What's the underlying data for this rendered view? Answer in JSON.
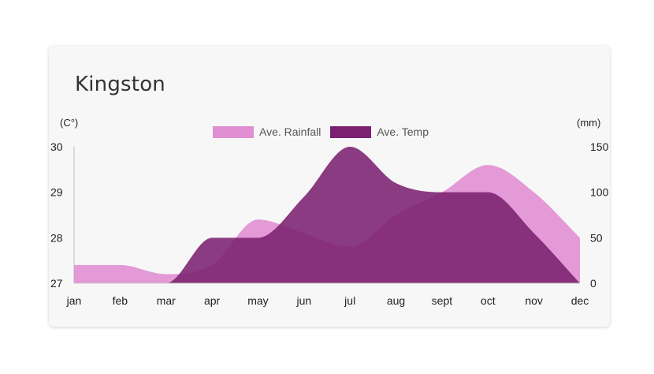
{
  "title": "Kingston",
  "chart_data": {
    "type": "area",
    "title": "Kingston",
    "categories": [
      "jan",
      "feb",
      "mar",
      "apr",
      "may",
      "jun",
      "jul",
      "aug",
      "sept",
      "oct",
      "nov",
      "dec"
    ],
    "left_axis": {
      "unit": "(C°)",
      "ylim": [
        27,
        30
      ],
      "ticks": [
        "30",
        "29",
        "28",
        "27"
      ]
    },
    "right_axis": {
      "unit": "(mm)",
      "ylim": [
        0,
        150
      ],
      "ticks": [
        "150",
        "100",
        "50",
        "0"
      ]
    },
    "series": [
      {
        "name": "Ave. Rainfall",
        "axis": "right",
        "color": "#e08fd2",
        "opacity": 0.9,
        "values": [
          20,
          20,
          10,
          20,
          70,
          55,
          40,
          75,
          100,
          130,
          100,
          50
        ]
      },
      {
        "name": "Ave. Temp",
        "axis": "left",
        "color": "#7b2170",
        "opacity": 0.88,
        "values": [
          27.0,
          27.0,
          27.0,
          28.0,
          28.0,
          28.9,
          30.0,
          29.2,
          29.0,
          29.0,
          28.1,
          27.0
        ]
      }
    ],
    "legend_position": "top-center",
    "grid": false
  }
}
